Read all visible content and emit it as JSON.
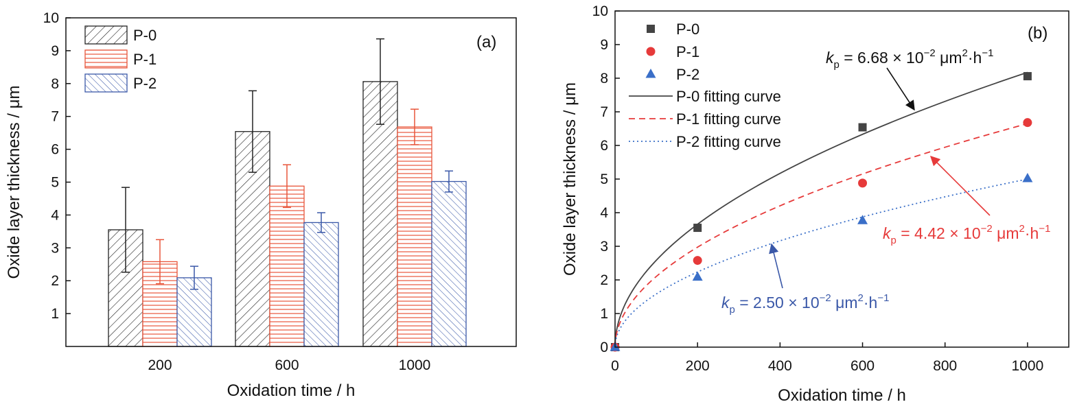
{
  "chart_data": [
    {
      "type": "bar",
      "panel_label": "(a)",
      "xlabel": "Oxidation time / h",
      "ylabel": "Oxide layer thickness / μm",
      "categories": [
        "200",
        "600",
        "1000"
      ],
      "ylim": [
        0,
        10
      ],
      "yticks": [
        "1",
        "2",
        "3",
        "4",
        "5",
        "6",
        "7",
        "8",
        "9",
        "10"
      ],
      "legend_position": "top-left",
      "series": [
        {
          "name": "P-0",
          "values": [
            3.55,
            6.54,
            8.06
          ],
          "errors": [
            1.29,
            1.24,
            1.3
          ],
          "color": "#222222",
          "hatch": "diagonal"
        },
        {
          "name": "P-1",
          "values": [
            2.58,
            4.88,
            6.68
          ],
          "errors": [
            0.67,
            0.65,
            0.54
          ],
          "color": "#e8553a",
          "hatch": "horizontal"
        },
        {
          "name": "P-2",
          "values": [
            2.09,
            3.77,
            5.02
          ],
          "errors": [
            0.35,
            0.3,
            0.32
          ],
          "color": "#3a58a8",
          "hatch": "back-diagonal"
        }
      ]
    },
    {
      "type": "scatter",
      "panel_label": "(b)",
      "xlabel": "Oxidation time / h",
      "ylabel": "Oxide layer thickness / μm",
      "xlim": [
        0,
        1100
      ],
      "ylim": [
        0,
        10
      ],
      "xticks": [
        "0",
        "200",
        "400",
        "600",
        "800",
        "1000"
      ],
      "yticks": [
        "0",
        "1",
        "2",
        "3",
        "4",
        "5",
        "6",
        "7",
        "8",
        "9",
        "10"
      ],
      "legend_position": "top-left",
      "series": [
        {
          "name": "P-0",
          "marker": "square",
          "color": "#444444",
          "x": [
            0,
            200,
            600,
            1000
          ],
          "y": [
            0,
            3.55,
            6.54,
            8.06
          ]
        },
        {
          "name": "P-1",
          "marker": "circle",
          "color": "#e63a3a",
          "x": [
            0,
            200,
            600,
            1000
          ],
          "y": [
            0,
            2.58,
            4.88,
            6.68
          ]
        },
        {
          "name": "P-2",
          "marker": "triangle",
          "color": "#3a6fc8",
          "x": [
            0,
            200,
            600,
            1000
          ],
          "y": [
            0,
            2.09,
            3.77,
            5.02
          ]
        }
      ],
      "fits": [
        {
          "name": "P-0 fitting curve",
          "style": "solid",
          "color": "#444444",
          "kp": 0.0668
        },
        {
          "name": "P-1 fitting curve",
          "style": "dashed",
          "color": "#e63a3a",
          "kp": 0.0442
        },
        {
          "name": "P-2 fitting curve",
          "style": "dotted",
          "color": "#3a6fc8",
          "kp": 0.025
        }
      ],
      "annotations": [
        {
          "k": "k",
          "sub": "p",
          "text": " = 6.68 × 10",
          "sup": "−2",
          "unit": " μm",
          "unit_sup": "2",
          "tail": "·h",
          "tail_sup": "−1",
          "color": "#111111"
        },
        {
          "k": "k",
          "sub": "p",
          "text": " = 4.42 × 10",
          "sup": "−2",
          "unit": " μm",
          "unit_sup": "2",
          "tail": "·h",
          "tail_sup": "−1",
          "color": "#e63a3a"
        },
        {
          "k": "k",
          "sub": "p",
          "text": " = 2.50 × 10",
          "sup": "−2",
          "unit": " μm",
          "unit_sup": "2",
          "tail": "·h",
          "tail_sup": "−1",
          "color": "#3a58a8"
        }
      ]
    }
  ]
}
